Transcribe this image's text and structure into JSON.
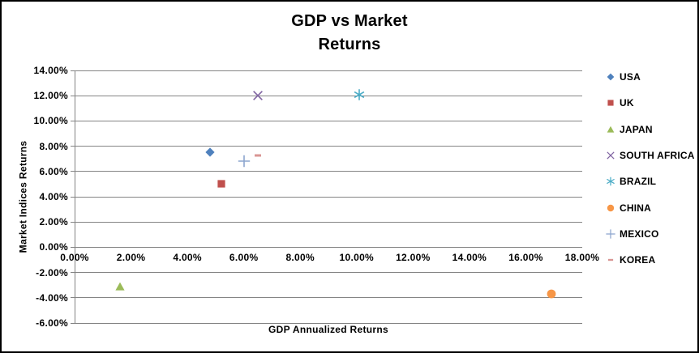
{
  "window": {
    "background": "#ffffff",
    "border_color": "#000000"
  },
  "chart_data": {
    "type": "scatter",
    "title_lines": [
      "GDP vs Market",
      "Returns"
    ],
    "xlabel": "GDP Annualized Returns",
    "ylabel": "Market Indices Returns",
    "xlim": [
      0,
      18
    ],
    "ylim": [
      -6,
      14
    ],
    "x_ticks": [
      0,
      2,
      4,
      6,
      8,
      10,
      12,
      14,
      16,
      18
    ],
    "x_tick_labels": [
      "0.00%",
      "2.00%",
      "4.00%",
      "6.00%",
      "8.00%",
      "10.00%",
      "12.00%",
      "14.00%",
      "16.00%",
      "18.00%"
    ],
    "y_ticks": [
      14,
      12,
      10,
      8,
      6,
      4,
      2,
      0,
      -2,
      -4,
      -6
    ],
    "y_tick_labels": [
      "14.00%",
      "12.00%",
      "10.00%",
      "8.00%",
      "6.00%",
      "4.00%",
      "2.00%",
      "0.00%",
      "-2.00%",
      "-4.00%",
      "-6.00%"
    ],
    "grid": "horizontal",
    "grid_color": "#848484",
    "axis_color": "#848484",
    "text_color": "#000000",
    "legend_position": "right",
    "series": [
      {
        "name": "USA",
        "marker": "diamond",
        "color": "#4F81BD",
        "x": 4.8,
        "y": 7.5
      },
      {
        "name": "UK",
        "marker": "square",
        "color": "#C0504D",
        "x": 5.2,
        "y": 5.0
      },
      {
        "name": "JAPAN",
        "marker": "triangle-up",
        "color": "#9BBB59",
        "x": 1.6,
        "y": -3.1
      },
      {
        "name": "SOUTH AFRICA",
        "marker": "x",
        "color": "#8064A2",
        "x": 6.5,
        "y": 12.0
      },
      {
        "name": "BRAZIL",
        "marker": "asterisk",
        "color": "#4BACC6",
        "x": 10.1,
        "y": 12.1
      },
      {
        "name": "CHINA",
        "marker": "circle",
        "color": "#F79646",
        "x": 16.9,
        "y": -3.7
      },
      {
        "name": "MEXICO",
        "marker": "plus",
        "color": "#8CA5CE",
        "x": 6.0,
        "y": 6.8
      },
      {
        "name": "KOREA",
        "marker": "dash",
        "color": "#D99694",
        "x": 6.5,
        "y": 7.3
      }
    ]
  }
}
